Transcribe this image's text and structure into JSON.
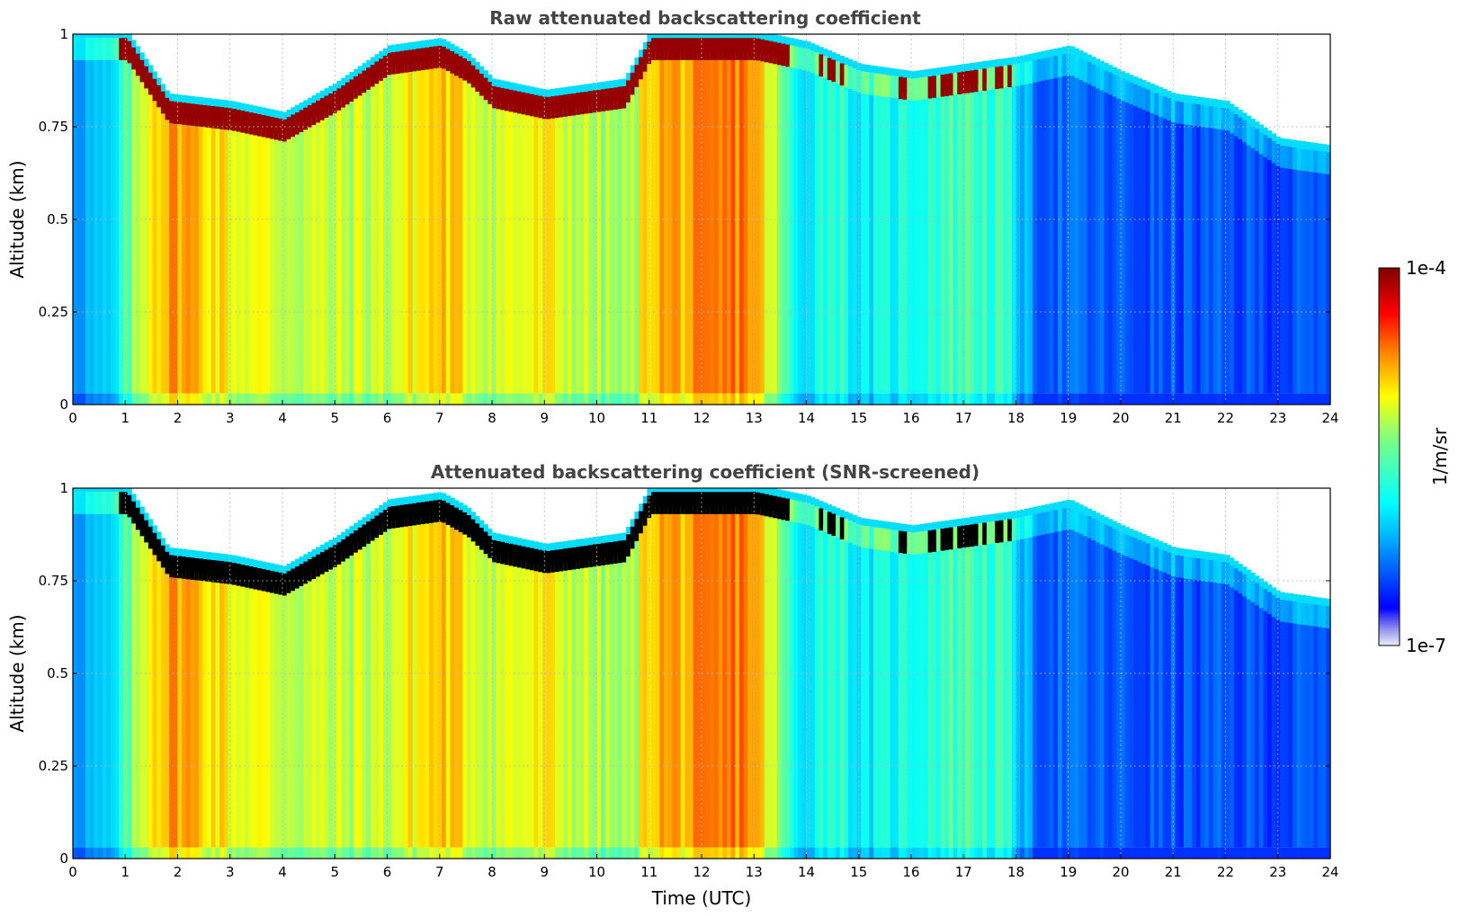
{
  "chart_data": [
    {
      "type": "heatmap",
      "title": "Raw attenuated backscattering coefficient",
      "xlabel": "",
      "ylabel": "Altitude (km)",
      "xlim": [
        0,
        24
      ],
      "ylim": [
        0,
        1
      ],
      "x_ticks": [
        "0",
        "1",
        "2",
        "3",
        "4",
        "5",
        "6",
        "7",
        "8",
        "9",
        "10",
        "11",
        "12",
        "13",
        "14",
        "15",
        "16",
        "17",
        "18",
        "19",
        "20",
        "21",
        "22",
        "23",
        "24"
      ],
      "y_ticks": [
        "0",
        "0.25",
        "0.5",
        "0.75",
        "1"
      ],
      "grid": true,
      "screened": false,
      "cloud_top_km": [
        [
          0,
          0.99
        ],
        [
          1,
          0.99
        ],
        [
          1.8,
          0.82
        ],
        [
          3,
          0.8
        ],
        [
          4,
          0.77
        ],
        [
          5,
          0.85
        ],
        [
          6,
          0.95
        ],
        [
          7,
          0.97
        ],
        [
          7.5,
          0.93
        ],
        [
          8,
          0.86
        ],
        [
          9,
          0.83
        ],
        [
          10,
          0.85
        ],
        [
          10.5,
          0.86
        ],
        [
          11,
          0.99
        ],
        [
          12,
          0.99
        ],
        [
          13,
          0.99
        ],
        [
          14,
          0.96
        ],
        [
          15,
          0.9
        ],
        [
          16,
          0.88
        ],
        [
          17,
          0.9
        ],
        [
          18,
          0.92
        ],
        [
          19,
          0.95
        ],
        [
          20,
          0.88
        ],
        [
          21,
          0.82
        ],
        [
          22,
          0.8
        ],
        [
          23,
          0.7
        ],
        [
          24,
          0.68
        ]
      ]
    },
    {
      "type": "heatmap",
      "title": "Attenuated backscattering coefficient (SNR-screened)",
      "xlabel": "Time (UTC)",
      "ylabel": "Altitude (km)",
      "xlim": [
        0,
        24
      ],
      "ylim": [
        0,
        1
      ],
      "x_ticks": [
        "0",
        "1",
        "2",
        "3",
        "4",
        "5",
        "6",
        "7",
        "8",
        "9",
        "10",
        "11",
        "12",
        "13",
        "14",
        "15",
        "16",
        "17",
        "18",
        "19",
        "20",
        "21",
        "22",
        "23",
        "24"
      ],
      "y_ticks": [
        "0",
        "0.25",
        "0.5",
        "0.75",
        "1"
      ],
      "grid": true,
      "screened": true,
      "cloud_top_km": [
        [
          0,
          0.99
        ],
        [
          1,
          0.99
        ],
        [
          1.8,
          0.82
        ],
        [
          3,
          0.8
        ],
        [
          4,
          0.77
        ],
        [
          5,
          0.85
        ],
        [
          6,
          0.95
        ],
        [
          7,
          0.97
        ],
        [
          7.5,
          0.93
        ],
        [
          8,
          0.86
        ],
        [
          9,
          0.83
        ],
        [
          10,
          0.85
        ],
        [
          10.5,
          0.86
        ],
        [
          11,
          0.99
        ],
        [
          12,
          0.99
        ],
        [
          13,
          0.99
        ],
        [
          14,
          0.96
        ],
        [
          15,
          0.9
        ],
        [
          16,
          0.88
        ],
        [
          17,
          0.9
        ],
        [
          18,
          0.92
        ],
        [
          19,
          0.95
        ],
        [
          20,
          0.88
        ],
        [
          21,
          0.82
        ],
        [
          22,
          0.8
        ],
        [
          23,
          0.7
        ],
        [
          24,
          0.68
        ]
      ]
    }
  ],
  "colorbar": {
    "label": "1/m/sr",
    "max_label": "1e-4",
    "min_label": "1e-7",
    "colormap": "jet",
    "screened_color": "#000000"
  }
}
